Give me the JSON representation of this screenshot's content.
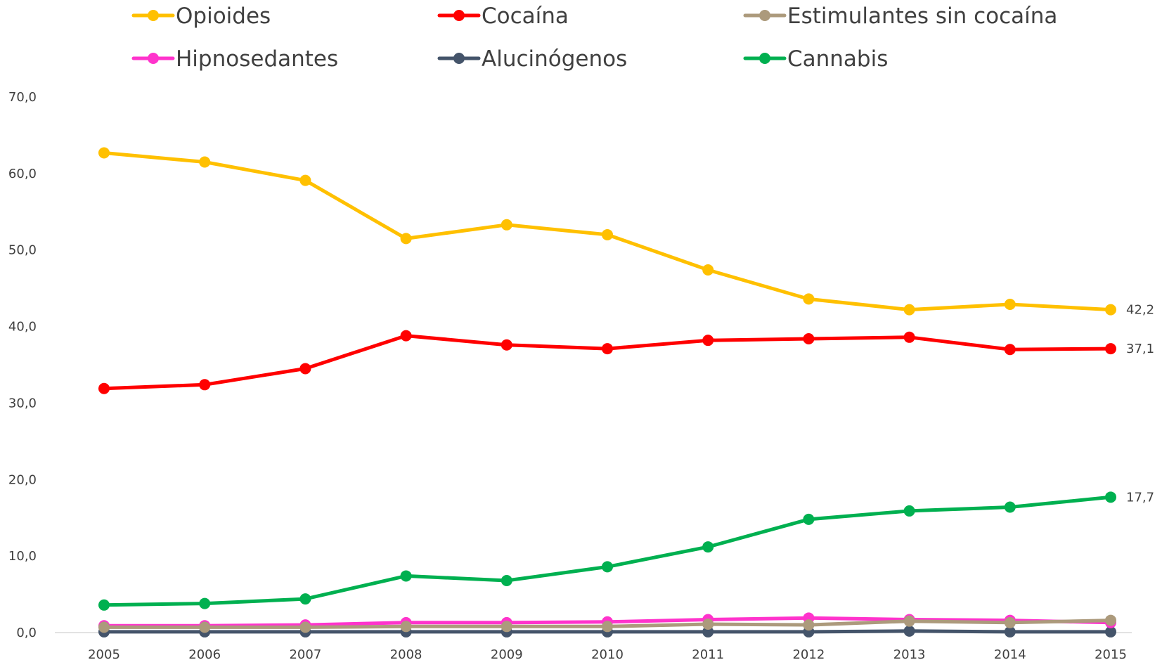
{
  "chart_data": {
    "type": "line",
    "title": "",
    "xlabel": "",
    "ylabel": "",
    "x": [
      "2005",
      "2006",
      "2007",
      "2008",
      "2009",
      "2010",
      "2011",
      "2012",
      "2013",
      "2014",
      "2015"
    ],
    "ylim": [
      0,
      70
    ],
    "yticks": [
      "0,0",
      "10,0",
      "20,0",
      "30,0",
      "40,0",
      "50,0",
      "60,0",
      "70,0"
    ],
    "grid": false,
    "legend_position": "top",
    "series": [
      {
        "name": "Opioides",
        "color": "#FFC000",
        "values": [
          62.7,
          61.5,
          59.1,
          51.5,
          53.3,
          52.0,
          47.4,
          43.6,
          42.2,
          42.9,
          42.2
        ],
        "end_label": "42,2"
      },
      {
        "name": "Cocaína",
        "color": "#FF0000",
        "values": [
          31.9,
          32.4,
          34.5,
          38.8,
          37.6,
          37.1,
          38.2,
          38.4,
          38.6,
          37.0,
          37.1
        ],
        "end_label": "37,1"
      },
      {
        "name": "Estimulantes sin cocaína",
        "color": "#AC9A7C",
        "values": [
          0.7,
          0.7,
          0.7,
          0.8,
          0.8,
          0.8,
          1.1,
          1.0,
          1.5,
          1.3,
          1.6
        ],
        "end_label": ""
      },
      {
        "name": "Hipnosedantes",
        "color": "#FF33CC",
        "values": [
          0.9,
          0.9,
          1.0,
          1.3,
          1.3,
          1.4,
          1.7,
          1.9,
          1.7,
          1.6,
          1.3
        ],
        "end_label": ""
      },
      {
        "name": "Alucinógenos",
        "color": "#44546A",
        "values": [
          0.1,
          0.1,
          0.1,
          0.1,
          0.1,
          0.1,
          0.1,
          0.1,
          0.2,
          0.1,
          0.1
        ],
        "end_label": ""
      },
      {
        "name": "Cannabis",
        "color": "#00B050",
        "values": [
          3.6,
          3.8,
          4.4,
          7.4,
          6.8,
          8.6,
          11.2,
          14.8,
          15.9,
          16.4,
          17.7
        ],
        "end_label": "17,7"
      }
    ]
  }
}
